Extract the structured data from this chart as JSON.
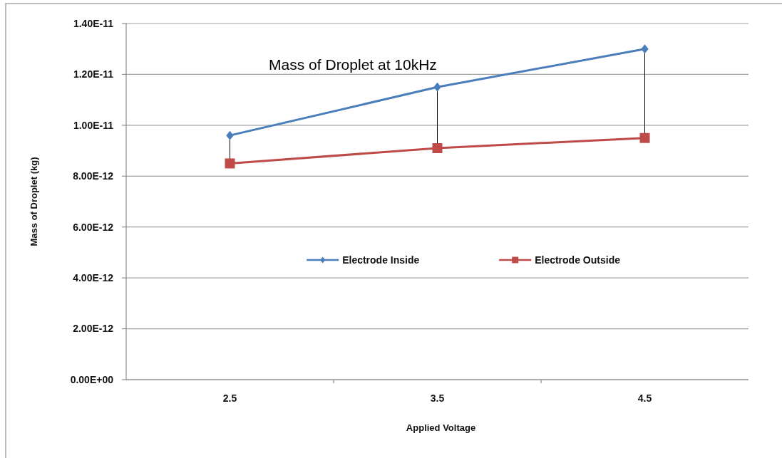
{
  "chart_data": {
    "type": "line",
    "title": "Mass of Droplet at 10kHz",
    "xlabel": "Applied Voltage",
    "ylabel": "Mass of Droplet (kg)",
    "categories": [
      "2.5",
      "3.5",
      "4.5"
    ],
    "series": [
      {
        "name": "Electrode Inside",
        "color": "#4a7ebb",
        "marker": "diamond",
        "values": [
          9.6e-12,
          1.15e-11,
          1.3e-11
        ]
      },
      {
        "name": "Electrode Outside",
        "color": "#be4b48",
        "marker": "square",
        "values": [
          8.5e-12,
          9.1e-12,
          9.5e-12
        ]
      }
    ],
    "ylim": [
      0,
      1.4e-11
    ],
    "yticks": [
      {
        "value": 0,
        "label": "0.00E+00"
      },
      {
        "value": 2e-12,
        "label": "2.00E-12"
      },
      {
        "value": 4e-12,
        "label": "4.00E-12"
      },
      {
        "value": 6e-12,
        "label": "6.00E-12"
      },
      {
        "value": 8e-12,
        "label": "8.00E-12"
      },
      {
        "value": 1e-11,
        "label": "1.00E-11"
      },
      {
        "value": 1.2e-11,
        "label": "1.20E-11"
      },
      {
        "value": 1.4e-11,
        "label": "1.40E-11"
      }
    ],
    "grid": "y",
    "legend": "center"
  }
}
